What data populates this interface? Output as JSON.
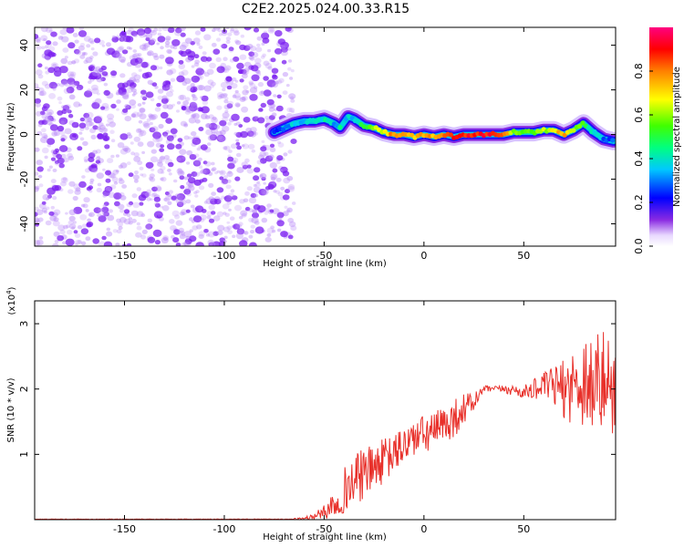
{
  "title": "C2E2.2025.024.00.33.R15",
  "colorbar": {
    "label": "Normalized spectral amplitude",
    "ticks": [
      "0.0",
      "0.2",
      "0.4",
      "0.6",
      "0.8"
    ]
  },
  "colors": {
    "snr_line": "#e8302a",
    "cloud": "#7a2cf0",
    "ridge_core": "#ff2020",
    "ridge_mid": "#00e0a0"
  },
  "chart_data": [
    {
      "type": "heatmap",
      "name": "spectrogram",
      "xlabel": "Height of straight line (km)",
      "ylabel": "Frequency (Hz)",
      "xlim": [
        -195,
        96
      ],
      "ylim": [
        -50,
        48
      ],
      "xticks": [
        -150,
        -100,
        -50,
        0,
        50
      ],
      "yticks": [
        -40,
        -20,
        0,
        20,
        40
      ],
      "colorscale_range": [
        0,
        1
      ],
      "noise_region_x": [
        -195,
        -65
      ],
      "ridge": {
        "x": [
          -75,
          -70,
          -65,
          -60,
          -55,
          -50,
          -45,
          -42,
          -38,
          -35,
          -30,
          -25,
          -20,
          -15,
          -10,
          -5,
          0,
          5,
          10,
          15,
          20,
          25,
          30,
          35,
          40,
          45,
          50,
          55,
          60,
          65,
          70,
          75,
          80,
          85,
          90,
          95
        ],
        "y": [
          1,
          3,
          5,
          6,
          6,
          7,
          5,
          3,
          8,
          7,
          4,
          3,
          1,
          0,
          0,
          -1,
          0,
          -1,
          0,
          -1,
          0,
          0,
          0,
          0,
          0,
          1,
          1,
          1,
          2,
          2,
          0,
          2,
          5,
          1,
          -2,
          -3
        ],
        "amplitude": [
          0.2,
          0.3,
          0.35,
          0.35,
          0.35,
          0.4,
          0.35,
          0.4,
          0.35,
          0.4,
          0.5,
          0.6,
          0.7,
          0.8,
          0.8,
          0.75,
          0.75,
          0.75,
          0.8,
          0.85,
          0.9,
          0.9,
          0.9,
          0.9,
          0.85,
          0.6,
          0.55,
          0.55,
          0.6,
          0.7,
          0.75,
          0.65,
          0.5,
          0.4,
          0.3,
          0.25
        ]
      }
    },
    {
      "type": "line",
      "name": "snr",
      "xlabel": "Height of straight line (km)",
      "ylabel": "SNR (10 * v/v)",
      "multiplier": "(x10^4)",
      "xlim": [
        -195,
        96
      ],
      "ylim": [
        0,
        3.35
      ],
      "xticks": [
        -150,
        -100,
        -50,
        0,
        50
      ],
      "yticks": [
        1,
        2,
        3
      ],
      "series": [
        {
          "x": [
            -195,
            -150,
            -100,
            -70,
            -60,
            -55,
            -50,
            -45,
            -40,
            -35,
            -30,
            -25,
            -20,
            -15,
            -10,
            -5,
            0,
            5,
            10,
            15,
            20,
            25,
            30,
            35,
            40,
            45,
            50,
            55,
            60,
            65,
            70,
            75,
            80,
            85,
            90,
            96
          ],
          "values": [
            0.0,
            0.0,
            0.0,
            0.0,
            0.02,
            0.05,
            0.12,
            0.25,
            0.45,
            0.6,
            0.7,
            0.8,
            0.9,
            1.0,
            1.15,
            1.25,
            1.3,
            1.35,
            1.45,
            1.55,
            1.7,
            1.8,
            2.0,
            2.0,
            2.0,
            1.98,
            1.95,
            2.0,
            2.05,
            2.05,
            2.0,
            2.05,
            2.15,
            2.1,
            2.1,
            2.0
          ],
          "noise_amplitude": [
            0.0,
            0.0,
            0.0,
            0.0,
            0.02,
            0.05,
            0.1,
            0.25,
            0.35,
            0.4,
            0.4,
            0.35,
            0.35,
            0.3,
            0.3,
            0.3,
            0.3,
            0.3,
            0.3,
            0.3,
            0.25,
            0.15,
            0.05,
            0.05,
            0.05,
            0.1,
            0.1,
            0.15,
            0.2,
            0.3,
            0.45,
            0.6,
            0.75,
            0.8,
            0.8,
            0.7
          ]
        }
      ]
    }
  ]
}
